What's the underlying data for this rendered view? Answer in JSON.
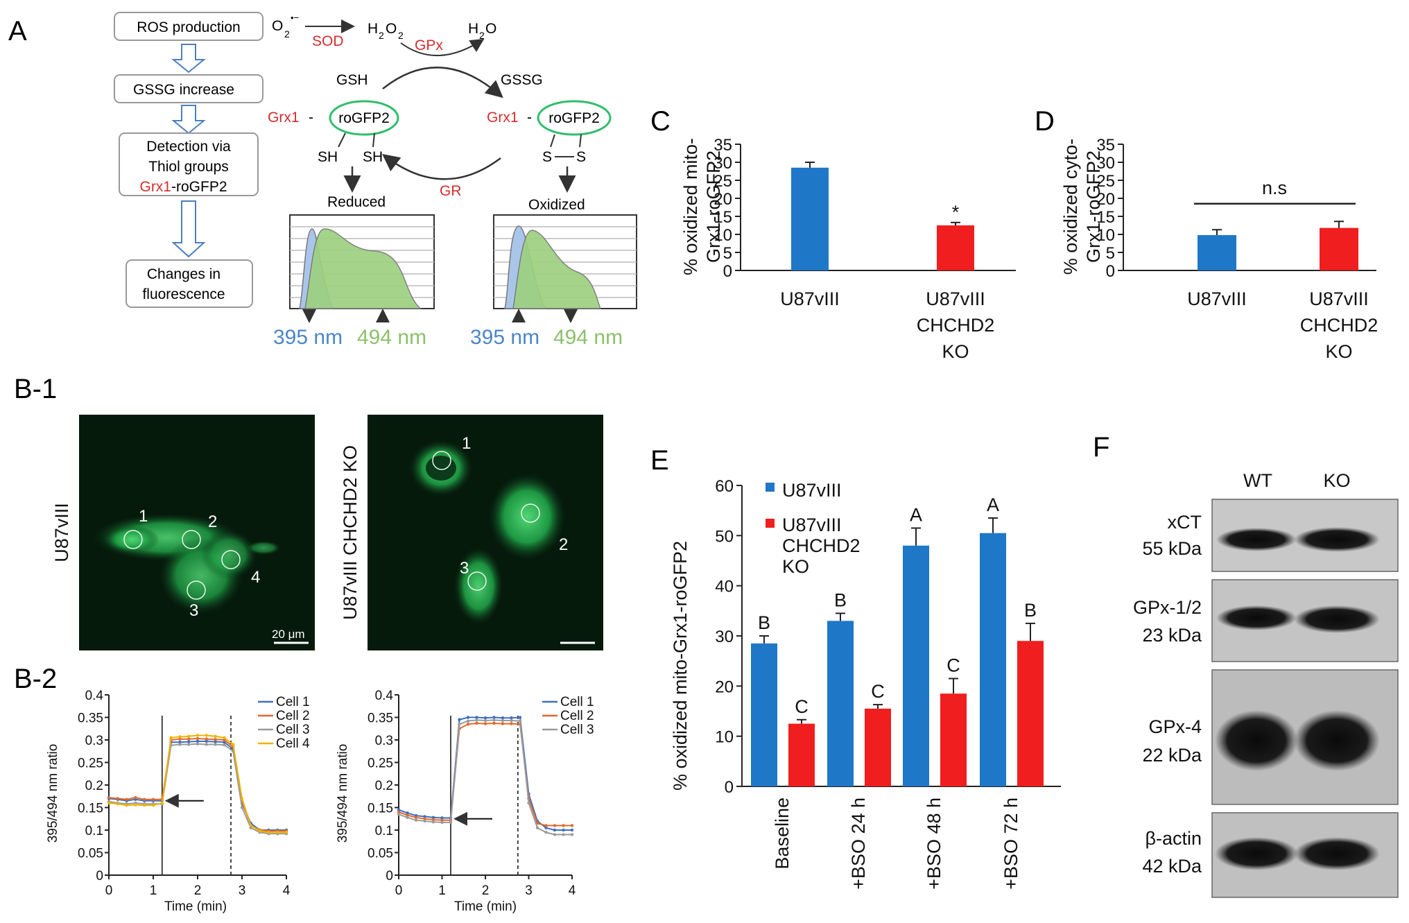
{
  "panel_labels": {
    "a": "A",
    "b1": "B-1",
    "b2": "B-2",
    "c": "C",
    "d": "D",
    "e": "E",
    "f": "F"
  },
  "colors": {
    "blue": "#1f77c8",
    "red": "#f01e1e",
    "scheme_red": "#d42d2d",
    "gfp_green": "#2fbe6b",
    "spec_blue": "#4a86c8",
    "spec_green": "#8cc06b"
  },
  "panel_a": {
    "flow": [
      "ROS production",
      "GSSG increase",
      "Detection via",
      "Thiol groups",
      "Grx1",
      "-roGFP2",
      "Changes in",
      "fluorescence"
    ],
    "o2": "O",
    "o2_sup": "2",
    "o2_charge": "•−",
    "sod": "SOD",
    "h2o2": "H",
    "h2o2_sub1": "2",
    "h2o2_o": "O",
    "h2o2_sub2": "2",
    "gpx": "GPx",
    "h2o": "H",
    "h2o_sub": "2",
    "h2o_o": "O",
    "gsh": "GSH",
    "gssg": "GSSG",
    "grx1": "Grx1",
    "dash": "-",
    "rogfp2": "roGFP2",
    "sh": "SH",
    "s": "S",
    "gr": "GR",
    "reduced": "Reduced",
    "oxidized": "Oxidized",
    "nm395": "395 nm",
    "nm494": "494 nm"
  },
  "panel_b1": {
    "left_label": "U87vIII",
    "right_label": "U87vIII CHCHD2 KO",
    "scale": "20 μm",
    "cells_left": [
      "1",
      "2",
      "3",
      "4"
    ],
    "cells_right": [
      "1",
      "2",
      "3"
    ]
  },
  "panel_b2": {
    "ylabel": "395/494 nm ratio",
    "xlabel": "Time (min)",
    "yticks": [
      "0.4",
      "0.35",
      "0.3",
      "0.25",
      "0.2",
      "0.15",
      "0.1",
      "0.05",
      "0"
    ],
    "xticks": [
      "0",
      "1",
      "2",
      "3",
      "4"
    ]
  },
  "panel_c": {
    "ylabel1": "% oxidized mito-",
    "ylabel2": "Grx1-roGFP2",
    "yticks": [
      "35",
      "30",
      "25",
      "20",
      "15",
      "10",
      "5",
      "0"
    ],
    "cat1": "U87vIII",
    "cat2a": "U87vIII",
    "cat2b": "CHCHD2",
    "cat2c": "KO",
    "sig": "*"
  },
  "panel_d": {
    "ylabel1": "% oxidized cyto-",
    "ylabel2": "Grx1-roGFP2",
    "yticks": [
      "35",
      "30",
      "25",
      "20",
      "15",
      "10",
      "5",
      "0"
    ],
    "cat1": "U87vIII",
    "cat2a": "U87vIII",
    "cat2b": "CHCHD2",
    "cat2c": "KO",
    "ns": "n.s"
  },
  "panel_e": {
    "ylabel": "% oxidized mito-Grx1-roGFP2",
    "yticks": [
      "60",
      "50",
      "40",
      "30",
      "20",
      "10",
      "0"
    ],
    "legend1": "U87vIII",
    "legend2a": "U87vIII",
    "legend2b": "CHCHD2",
    "legend2c": "KO",
    "cats": [
      "Baseline",
      "+BSO 24 h",
      "+BSO 48 h",
      "+BSO 72 h"
    ]
  },
  "panel_f": {
    "wt": "WT",
    "ko": "KO",
    "bands": [
      {
        "name": "xCT",
        "kda": "55 kDa"
      },
      {
        "name": "GPx-1/2",
        "kda": "23 kDa"
      },
      {
        "name": "GPx-4",
        "kda": "22 kDa"
      },
      {
        "name": "β-actin",
        "kda": "42 kDa"
      }
    ]
  },
  "chart_data": [
    {
      "type": "bar",
      "panel": "C",
      "ylabel": "% oxidized mito-Grx1-roGFP2",
      "ylim": [
        0,
        35
      ],
      "categories": [
        "U87vIII",
        "U87vIII CHCHD2 KO"
      ],
      "values": [
        28.5,
        12.5
      ],
      "errors": [
        1.5,
        0.8
      ],
      "colors": [
        "#1f77c8",
        "#f01e1e"
      ],
      "annotations": [
        "",
        "*"
      ]
    },
    {
      "type": "bar",
      "panel": "D",
      "ylabel": "% oxidized cyto-Grx1-roGFP2",
      "ylim": [
        0,
        35
      ],
      "categories": [
        "U87vIII",
        "U87vIII CHCHD2 KO"
      ],
      "values": [
        9.8,
        11.8
      ],
      "errors": [
        1.5,
        1.8
      ],
      "colors": [
        "#1f77c8",
        "#f01e1e"
      ],
      "annotations": [
        "n.s"
      ]
    },
    {
      "type": "bar",
      "panel": "E",
      "ylabel": "% oxidized mito-Grx1-roGFP2",
      "ylim": [
        0,
        60
      ],
      "categories": [
        "Baseline",
        "+BSO 24 h",
        "+BSO 48 h",
        "+BSO 72 h"
      ],
      "series": [
        {
          "name": "U87vIII",
          "values": [
            28.5,
            33.0,
            48.0,
            50.5
          ],
          "errors": [
            1.5,
            1.5,
            3.5,
            3.0
          ],
          "letters": [
            "B",
            "B",
            "A",
            "A"
          ]
        },
        {
          "name": "U87vIII CHCHD2 KO",
          "values": [
            12.5,
            15.5,
            18.5,
            29.0
          ],
          "errors": [
            0.8,
            0.8,
            3.0,
            3.5
          ],
          "letters": [
            "C",
            "C",
            "C",
            "B"
          ]
        }
      ]
    },
    {
      "type": "line",
      "panel": "B-2 left",
      "xlabel": "Time (min)",
      "ylabel": "395/494 nm ratio",
      "xlim": [
        0,
        4
      ],
      "ylim": [
        0,
        0.4
      ],
      "x": [
        0,
        0.2,
        0.4,
        0.6,
        0.8,
        1.0,
        1.2,
        1.4,
        1.6,
        1.8,
        2.0,
        2.2,
        2.4,
        2.6,
        2.8,
        3.0,
        3.2,
        3.4,
        3.6,
        3.8,
        4.0
      ],
      "series": [
        {
          "name": "Cell 1",
          "values": [
            0.17,
            0.168,
            0.165,
            0.168,
            0.165,
            0.165,
            0.165,
            0.295,
            0.295,
            0.296,
            0.297,
            0.297,
            0.296,
            0.295,
            0.28,
            0.16,
            0.115,
            0.1,
            0.1,
            0.1,
            0.1
          ]
        },
        {
          "name": "Cell 2",
          "values": [
            0.172,
            0.17,
            0.168,
            0.172,
            0.168,
            0.168,
            0.168,
            0.3,
            0.302,
            0.302,
            0.303,
            0.302,
            0.301,
            0.3,
            0.285,
            0.165,
            0.11,
            0.1,
            0.098,
            0.098,
            0.098
          ]
        },
        {
          "name": "Cell 3",
          "values": [
            0.163,
            0.16,
            0.158,
            0.16,
            0.158,
            0.158,
            0.158,
            0.288,
            0.29,
            0.29,
            0.291,
            0.29,
            0.29,
            0.289,
            0.275,
            0.15,
            0.105,
            0.095,
            0.092,
            0.092,
            0.092
          ]
        },
        {
          "name": "Cell 4",
          "values": [
            0.16,
            0.158,
            0.155,
            0.156,
            0.155,
            0.155,
            0.16,
            0.305,
            0.307,
            0.308,
            0.31,
            0.31,
            0.308,
            0.305,
            0.29,
            0.17,
            0.11,
            0.098,
            0.095,
            0.095,
            0.095
          ]
        }
      ]
    },
    {
      "type": "line",
      "panel": "B-2 right",
      "xlabel": "Time (min)",
      "ylabel": "395/494 nm ratio",
      "xlim": [
        0,
        4
      ],
      "ylim": [
        0,
        0.4
      ],
      "x": [
        0,
        0.2,
        0.4,
        0.6,
        0.8,
        1.0,
        1.2,
        1.4,
        1.6,
        1.8,
        2.0,
        2.2,
        2.4,
        2.6,
        2.8,
        3.0,
        3.2,
        3.4,
        3.6,
        3.8,
        4.0
      ],
      "series": [
        {
          "name": "Cell 1",
          "values": [
            0.145,
            0.138,
            0.132,
            0.13,
            0.128,
            0.127,
            0.127,
            0.345,
            0.35,
            0.35,
            0.349,
            0.35,
            0.349,
            0.349,
            0.35,
            0.18,
            0.12,
            0.105,
            0.1,
            0.1,
            0.1
          ]
        },
        {
          "name": "Cell 2",
          "values": [
            0.14,
            0.133,
            0.128,
            0.125,
            0.123,
            0.122,
            0.122,
            0.325,
            0.335,
            0.337,
            0.336,
            0.337,
            0.336,
            0.336,
            0.335,
            0.17,
            0.115,
            0.11,
            0.11,
            0.11,
            0.11
          ]
        },
        {
          "name": "Cell 3",
          "values": [
            0.135,
            0.128,
            0.122,
            0.12,
            0.118,
            0.117,
            0.117,
            0.335,
            0.342,
            0.344,
            0.343,
            0.344,
            0.343,
            0.343,
            0.342,
            0.16,
            0.105,
            0.095,
            0.09,
            0.09,
            0.09
          ]
        }
      ]
    }
  ]
}
